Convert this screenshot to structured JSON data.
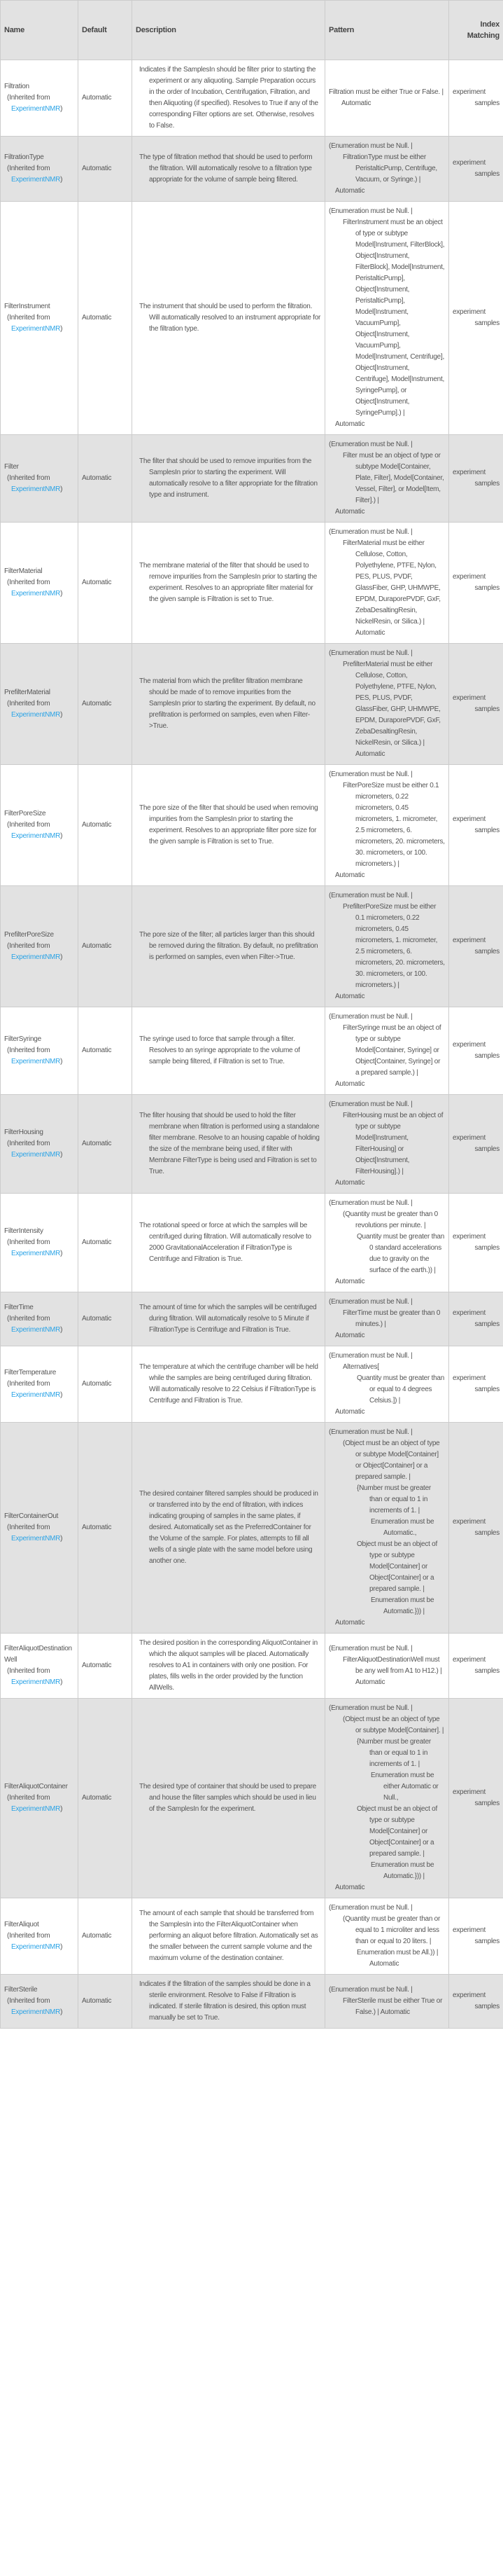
{
  "headers": {
    "name": "Name",
    "default": "Default",
    "description": "Description",
    "pattern": "Pattern",
    "index_matching": "Index Matching"
  },
  "inherited_label": "(Inherited from",
  "inherited_close": ")",
  "link_color": "#2aa3e6",
  "rows": [
    {
      "name": "Filtration",
      "inherited": "ExperimentNMR",
      "default": "Automatic",
      "description": "Indicates if the SamplesIn should be filter prior to starting the experiment or any aliquoting. Sample Preparation occurs in the order of Incubation, Centrifugation, Filtration, and then Aliquoting (if specified). Resolves to True if any of the corresponding Filter options are set. Otherwise, resolves to False.",
      "pattern": [
        {
          "d": 0,
          "t": "Filtration must be either True or False. | Automatic"
        }
      ],
      "index": [
        "experiment",
        "samples"
      ]
    },
    {
      "name": "FiltrationType",
      "inherited": "ExperimentNMR",
      "default": "Automatic",
      "description": "The type of filtration method that should be used to perform the filtration. Will automatically resolve to a filtration type appropriate for the volume of sample being filtered.",
      "pattern": [
        {
          "d": 0,
          "t": "(Enumeration must be Null. |"
        },
        {
          "d": 1,
          "t": "FiltrationType must be either PeristalticPump, Centrifuge, Vacuum, or Syringe.) |"
        }
      ],
      "tail": "Automatic",
      "index": [
        "experiment",
        "samples"
      ]
    },
    {
      "name": "FilterInstrument",
      "inherited": "ExperimentNMR",
      "default": "Automatic",
      "description": "The instrument that should be used to perform the filtration. Will automatically resolved to an instrument appropriate for the filtration type.",
      "pattern": [
        {
          "d": 0,
          "t": "(Enumeration must be Null. |"
        },
        {
          "d": 1,
          "t": "FilterInstrument must be an object of type or subtype Model[Instrument, FilterBlock], Object[Instrument, FilterBlock], Model[Instrument, PeristalticPump], Object[Instrument, PeristalticPump], Model[Instrument, VacuumPump], Object[Instrument, VacuumPump], Model[Instrument, Centrifuge], Object[Instrument, Centrifuge], Model[Instrument, SyringePump], or Object[Instrument, SyringePump].) |"
        }
      ],
      "tail": "Automatic",
      "index": [
        "experiment",
        "samples"
      ]
    },
    {
      "name": "Filter",
      "inherited": "ExperimentNMR",
      "default": "Automatic",
      "description": "The filter that should be used to remove impurities from the SamplesIn prior to starting the experiment. Will automatically resolve to a filter appropriate for the filtration type and instrument.",
      "pattern": [
        {
          "d": 0,
          "t": "(Enumeration must be Null. |"
        },
        {
          "d": 1,
          "t": "Filter must be an object of type or subtype Model[Container, Plate, Filter], Model[Container, Vessel, Filter], or Model[Item, Filter].) |"
        }
      ],
      "tail": "Automatic",
      "index": [
        "experiment",
        "samples"
      ]
    },
    {
      "name": "FilterMaterial",
      "inherited": "ExperimentNMR",
      "default": "Automatic",
      "description": "The membrane material of the filter that should be used to remove impurities from the SamplesIn prior to starting the experiment. Resolves to an appropriate filter material for the given sample is Filtration is set to True.",
      "pattern": [
        {
          "d": 0,
          "t": "(Enumeration must be Null. |"
        },
        {
          "d": 1,
          "t": "FilterMaterial must be either Cellulose, Cotton, Polyethylene, PTFE, Nylon, PES, PLUS, PVDF, GlassFiber, GHP, UHMWPE, EPDM, DuraporePVDF, GxF, ZebaDesaltingResin, NickelResin, or Silica.) | Automatic"
        }
      ],
      "index": [
        "experiment",
        "samples"
      ]
    },
    {
      "name": "PrefilterMaterial",
      "inherited": "ExperimentNMR",
      "default": "Automatic",
      "description": "The material from which the prefilter filtration membrane should be made of to remove impurities from the SamplesIn prior to starting the experiment. By default, no prefiltration is performed on samples, even when Filter->True.",
      "pattern": [
        {
          "d": 0,
          "t": "(Enumeration must be Null. |"
        },
        {
          "d": 1,
          "t": "PrefilterMaterial must be either Cellulose, Cotton, Polyethylene, PTFE, Nylon, PES, PLUS, PVDF, GlassFiber, GHP, UHMWPE, EPDM, DuraporePVDF, GxF, ZebaDesaltingResin, NickelResin, or Silica.) | Automatic"
        }
      ],
      "index": [
        "experiment",
        "samples"
      ]
    },
    {
      "name": "FilterPoreSize",
      "inherited": "ExperimentNMR",
      "default": "Automatic",
      "description": "The pore size of the filter that should be used when removing impurities from the SamplesIn prior to starting the experiment. Resolves to an appropriate filter pore size for the given sample is Filtration is set to True.",
      "pattern": [
        {
          "d": 0,
          "t": "(Enumeration must be Null. |"
        },
        {
          "d": 1,
          "t": "FilterPoreSize must be either 0.1 micrometers, 0.22 micrometers, 0.45 micrometers, 1. micrometer, 2.5 micrometers, 6. micrometers, 20. micrometers, 30. micrometers, or 100. micrometers.) |"
        }
      ],
      "tail": "Automatic",
      "index": [
        "experiment",
        "samples"
      ]
    },
    {
      "name": "PrefilterPoreSize",
      "inherited": "ExperimentNMR",
      "default": "Automatic",
      "description": "The pore size of the filter; all particles larger than this should be removed during the filtration. By default, no prefiltration is performed on samples, even when Filter->True.",
      "pattern": [
        {
          "d": 0,
          "t": "(Enumeration must be Null. |"
        },
        {
          "d": 1,
          "t": "PrefilterPoreSize must be either 0.1 micrometers, 0.22 micrometers, 0.45 micrometers, 1. micrometer, 2.5 micrometers, 6. micrometers, 20. micrometers, 30. micrometers, or 100. micrometers.) |"
        }
      ],
      "tail": "Automatic",
      "index": [
        "experiment",
        "samples"
      ]
    },
    {
      "name": "FilterSyringe",
      "inherited": "ExperimentNMR",
      "default": "Automatic",
      "description": "The syringe used to force that sample through a filter. Resolves to an syringe appropriate to the volume of sample being filtered, if Filtration is set to True.",
      "pattern": [
        {
          "d": 0,
          "t": "(Enumeration must be Null. |"
        },
        {
          "d": 1,
          "t": "FilterSyringe must be an object of type or subtype Model[Container, Syringe] or Object[Container, Syringe] or a prepared sample.) |"
        }
      ],
      "tail": "Automatic",
      "index": [
        "experiment",
        "samples"
      ]
    },
    {
      "name": "FilterHousing",
      "inherited": "ExperimentNMR",
      "default": "Automatic",
      "description": "The filter housing that should be used to hold the filter membrane when filtration is performed using a standalone filter membrane. Resolve to an housing capable of holding the size of the membrane being used, if filter with Membrane FilterType is being used and Filtration is set to True.",
      "pattern": [
        {
          "d": 0,
          "t": "(Enumeration must be Null. |"
        },
        {
          "d": 1,
          "t": "FilterHousing must be an object of type or subtype Model[Instrument, FilterHousing] or Object[Instrument, FilterHousing].) |"
        }
      ],
      "tail": "Automatic",
      "index": [
        "experiment",
        "samples"
      ]
    },
    {
      "name": "FilterIntensity",
      "inherited": "ExperimentNMR",
      "default": "Automatic",
      "description": "The rotational speed or force at which the samples will be centrifuged during filtration. Will automatically resolve to 2000 GravitationalAcceleration if FiltrationType is Centrifuge and Filtration is True.",
      "pattern": [
        {
          "d": 0,
          "t": "(Enumeration must be Null. |"
        },
        {
          "d": 1,
          "t": "(Quantity must be greater than 0 revolutions per minute. |"
        },
        {
          "d": 2,
          "t": "Quantity must be greater than 0 standard accelerations due to gravity on the surface of the earth.)) |"
        }
      ],
      "tail": "Automatic",
      "index": [
        "experiment",
        "samples"
      ]
    },
    {
      "name": "FilterTime",
      "inherited": "ExperimentNMR",
      "default": "Automatic",
      "description": "The amount of time for which the samples will be centrifuged during filtration. Will automatically resolve to 5 Minute if FiltrationType is Centrifuge and Filtration is True.",
      "pattern": [
        {
          "d": 0,
          "t": "(Enumeration must be Null. |"
        },
        {
          "d": 1,
          "t": "FilterTime must be greater than 0 minutes.) |"
        }
      ],
      "tail": "Automatic",
      "index": [
        "experiment",
        "samples"
      ]
    },
    {
      "name": "FilterTemperature",
      "inherited": "ExperimentNMR",
      "default": "Automatic",
      "description": "The temperature at which the centrifuge chamber will be held while the samples are being centrifuged during filtration. Will automatically resolve to 22 Celsius if FiltrationType is Centrifuge and Filtration is True.",
      "pattern": [
        {
          "d": 0,
          "t": "(Enumeration must be Null. |"
        },
        {
          "d": 1,
          "t": "Alternatives["
        },
        {
          "d": 2,
          "t": "Quantity must be greater than or equal to 4 degrees Celsius.]) |"
        }
      ],
      "tail": "Automatic",
      "index": [
        "experiment",
        "samples"
      ]
    },
    {
      "name": "FilterContainerOut",
      "inherited": "ExperimentNMR",
      "default": "Automatic",
      "description": "The desired container filtered samples should be produced in or transferred into by the end of filtration, with indices indicating grouping of samples in the same plates, if desired. Automatically set as the PreferredContainer for the Volume of the sample. For plates, attempts to fill all wells of a single plate with the same model before using another one.",
      "pattern": [
        {
          "d": 0,
          "t": "(Enumeration must be Null. |"
        },
        {
          "d": 1,
          "t": "(Object must be an object of type or subtype Model[Container] or Object[Container] or a prepared sample. |"
        },
        {
          "d": 2,
          "t": "{Number must be greater than or equal to 1 in increments of 1. |"
        },
        {
          "d": 3,
          "t": "Enumeration must be Automatic.,"
        },
        {
          "d": 2,
          "t": "Object must be an object of type or subtype Model[Container] or Object[Container] or a prepared sample. |"
        },
        {
          "d": 3,
          "t": "Enumeration must be Automatic.})) |"
        }
      ],
      "tail": "Automatic",
      "index": [
        "experiment",
        "samples"
      ]
    },
    {
      "name": "FilterAliquotDestinationWell",
      "inherited": "ExperimentNMR",
      "default": "Automatic",
      "description": "The desired position in the corresponding AliquotContainer in which the aliquot samples will be placed. Automatically resolves to A1 in containers with only one position. For plates, fills wells in the order provided by the function AllWells.",
      "pattern": [
        {
          "d": 0,
          "t": "(Enumeration must be Null. |"
        },
        {
          "d": 1,
          "t": "FilterAliquotDestinationWell must be any well from A1 to H12.) | Automatic"
        }
      ],
      "index": [
        "experiment",
        "samples"
      ]
    },
    {
      "name": "FilterAliquotContainer",
      "inherited": "ExperimentNMR",
      "default": "Automatic",
      "description": "The desired type of container that should be used to prepare and house the filter samples which should be used in lieu of the SamplesIn for the experiment.",
      "pattern": [
        {
          "d": 0,
          "t": "(Enumeration must be Null. |"
        },
        {
          "d": 1,
          "t": "(Object must be an object of type or subtype Model[Container]. |"
        },
        {
          "d": 2,
          "t": "{Number must be greater than or equal to 1 in increments of 1. |"
        },
        {
          "d": 3,
          "t": "Enumeration must be either Automatic or Null.,"
        },
        {
          "d": 2,
          "t": "Object must be an object of type or subtype Model[Container] or Object[Container] or a prepared sample. |"
        },
        {
          "d": 3,
          "t": "Enumeration must be Automatic.})) |"
        }
      ],
      "tail": "Automatic",
      "index": [
        "experiment",
        "samples"
      ]
    },
    {
      "name": "FilterAliquot",
      "inherited": "ExperimentNMR",
      "default": "Automatic",
      "description": "The amount of each sample that should be transferred from the SamplesIn into the FilterAliquotContainer when performing an aliquot before filtration. Automatically set as the smaller between the current sample volume and the maximum volume of the destination container.",
      "pattern": [
        {
          "d": 0,
          "t": "(Enumeration must be Null. |"
        },
        {
          "d": 1,
          "t": "(Quantity must be greater than or equal to 1 microliter and less than or equal to 20 liters. |"
        },
        {
          "d": 2,
          "t": "Enumeration must be All.)) | Automatic"
        }
      ],
      "index": [
        "experiment",
        "samples"
      ]
    },
    {
      "name": "FilterSterile",
      "inherited": "ExperimentNMR",
      "default": "Automatic",
      "description": "Indicates if the filtration of the samples should be done in a sterile environment. Resolve to False if Filtration is indicated. If sterile filtration is desired, this option must manually be set to True.",
      "pattern": [
        {
          "d": 0,
          "t": "(Enumeration must be Null. |"
        },
        {
          "d": 1,
          "t": "FilterSterile must be either True or False.) | Automatic"
        }
      ],
      "index": [
        "experiment",
        "samples"
      ]
    }
  ]
}
